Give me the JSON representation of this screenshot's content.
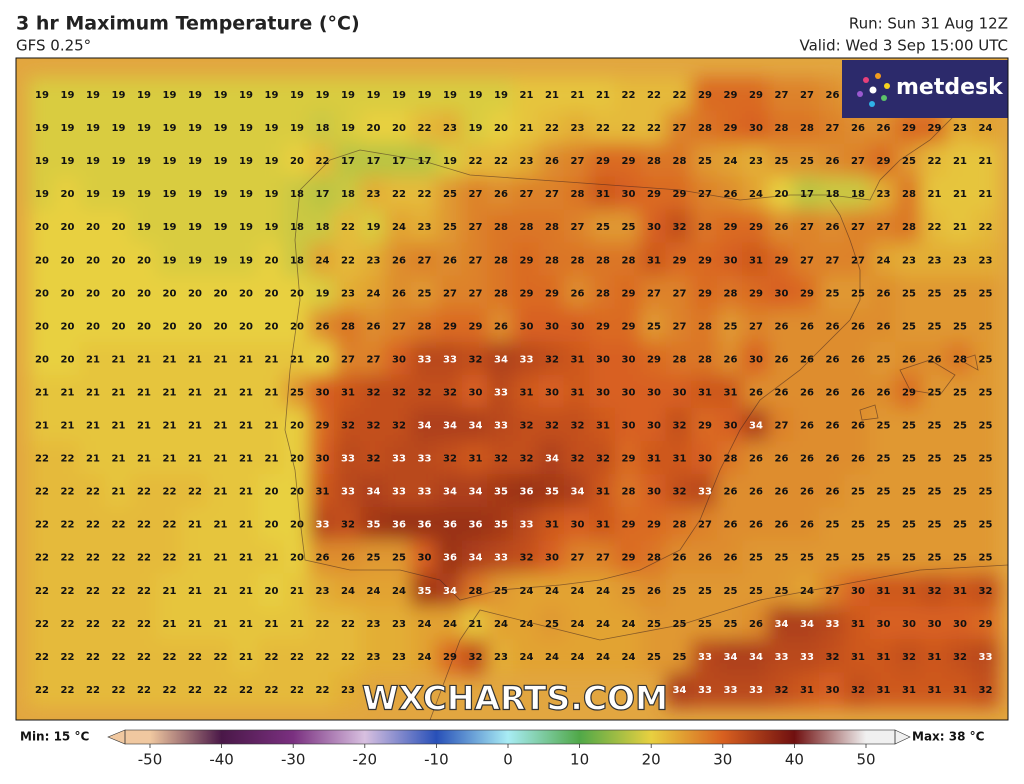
{
  "header": {
    "title": "3 hr Maximum Temperature (°C)",
    "model": "GFS 0.25°",
    "run": "Run: Sun 31 Aug 12Z",
    "valid": "Valid: Wed 3 Sep 15:00 UTC"
  },
  "logo": "metdesk",
  "watermark": "WXCHARTS.COM",
  "grid": {
    "rows": [
      [
        19,
        19,
        19,
        19,
        19,
        19,
        19,
        19,
        19,
        19,
        19,
        19,
        19,
        19,
        19,
        19,
        19,
        19,
        19,
        21,
        21,
        21,
        21,
        22,
        22,
        22,
        29,
        29,
        29,
        27,
        27,
        26,
        null,
        null,
        null,
        null,
        null,
        null
      ],
      [
        19,
        19,
        19,
        19,
        19,
        19,
        19,
        19,
        19,
        19,
        19,
        18,
        19,
        20,
        20,
        22,
        23,
        19,
        20,
        21,
        22,
        23,
        22,
        22,
        22,
        27,
        28,
        29,
        30,
        28,
        28,
        27,
        26,
        26,
        29,
        29,
        23,
        24
      ],
      [
        19,
        19,
        19,
        19,
        19,
        19,
        19,
        19,
        19,
        19,
        20,
        22,
        17,
        17,
        17,
        17,
        19,
        22,
        22,
        23,
        26,
        27,
        29,
        29,
        28,
        28,
        25,
        24,
        23,
        25,
        25,
        26,
        27,
        29,
        25,
        22,
        21,
        21
      ],
      [
        19,
        20,
        19,
        19,
        19,
        19,
        19,
        19,
        19,
        19,
        18,
        17,
        18,
        23,
        22,
        22,
        25,
        27,
        26,
        27,
        27,
        28,
        31,
        30,
        29,
        29,
        27,
        26,
        24,
        20,
        17,
        18,
        18,
        23,
        28,
        21,
        21,
        21
      ],
      [
        20,
        20,
        20,
        20,
        19,
        19,
        19,
        19,
        19,
        19,
        18,
        18,
        22,
        19,
        24,
        23,
        25,
        27,
        28,
        28,
        28,
        27,
        25,
        25,
        30,
        32,
        28,
        29,
        29,
        26,
        27,
        26,
        27,
        27,
        28,
        22,
        21,
        22
      ],
      [
        20,
        20,
        20,
        20,
        20,
        19,
        19,
        19,
        19,
        20,
        18,
        24,
        22,
        23,
        26,
        27,
        26,
        27,
        28,
        29,
        28,
        28,
        28,
        28,
        31,
        29,
        29,
        30,
        31,
        29,
        27,
        27,
        27,
        24,
        23,
        23,
        23,
        23
      ],
      [
        20,
        20,
        20,
        20,
        20,
        20,
        20,
        20,
        20,
        20,
        20,
        19,
        23,
        24,
        26,
        25,
        27,
        27,
        28,
        29,
        29,
        26,
        28,
        29,
        27,
        27,
        29,
        28,
        29,
        30,
        29,
        25,
        25,
        26,
        25,
        25,
        25,
        25
      ],
      [
        20,
        20,
        20,
        20,
        20,
        20,
        20,
        20,
        20,
        20,
        20,
        26,
        28,
        26,
        27,
        28,
        29,
        29,
        26,
        30,
        30,
        30,
        29,
        29,
        25,
        27,
        28,
        25,
        27,
        26,
        26,
        26,
        26,
        26,
        25,
        25,
        25,
        25
      ],
      [
        20,
        20,
        21,
        21,
        21,
        21,
        21,
        21,
        21,
        21,
        21,
        20,
        27,
        27,
        30,
        33,
        33,
        32,
        34,
        33,
        32,
        31,
        30,
        30,
        29,
        28,
        28,
        26,
        30,
        26,
        26,
        26,
        26,
        25,
        26,
        26,
        28,
        25
      ],
      [
        21,
        21,
        21,
        21,
        21,
        21,
        21,
        21,
        21,
        21,
        25,
        30,
        31,
        32,
        32,
        32,
        32,
        30,
        33,
        31,
        30,
        31,
        30,
        30,
        30,
        30,
        31,
        31,
        26,
        26,
        26,
        26,
        26,
        26,
        29,
        25,
        25,
        25
      ],
      [
        21,
        21,
        21,
        21,
        21,
        21,
        21,
        21,
        21,
        21,
        20,
        29,
        32,
        32,
        32,
        34,
        34,
        34,
        33,
        32,
        32,
        32,
        31,
        30,
        30,
        32,
        29,
        30,
        34,
        27,
        26,
        26,
        26,
        25,
        25,
        25,
        25,
        25
      ],
      [
        22,
        22,
        21,
        21,
        21,
        21,
        21,
        21,
        21,
        21,
        20,
        30,
        33,
        32,
        33,
        33,
        32,
        31,
        32,
        32,
        34,
        32,
        32,
        29,
        31,
        31,
        30,
        28,
        26,
        26,
        26,
        26,
        26,
        25,
        25,
        25,
        25,
        25
      ],
      [
        22,
        22,
        22,
        21,
        22,
        22,
        22,
        21,
        21,
        20,
        20,
        31,
        33,
        34,
        33,
        33,
        34,
        34,
        35,
        36,
        35,
        34,
        31,
        28,
        30,
        32,
        33,
        26,
        26,
        26,
        26,
        26,
        25,
        25,
        25,
        25,
        25,
        25
      ],
      [
        22,
        22,
        22,
        22,
        22,
        22,
        21,
        21,
        21,
        20,
        20,
        33,
        32,
        35,
        36,
        36,
        36,
        36,
        35,
        33,
        31,
        30,
        31,
        29,
        29,
        28,
        27,
        26,
        26,
        26,
        26,
        25,
        25,
        25,
        25,
        25,
        25,
        25
      ],
      [
        22,
        22,
        22,
        22,
        22,
        22,
        21,
        21,
        21,
        21,
        20,
        26,
        26,
        25,
        25,
        30,
        36,
        34,
        33,
        32,
        30,
        27,
        27,
        29,
        28,
        26,
        26,
        26,
        25,
        25,
        25,
        25,
        25,
        25,
        25,
        25,
        25,
        25
      ],
      [
        22,
        22,
        22,
        22,
        22,
        21,
        21,
        21,
        21,
        20,
        21,
        23,
        24,
        24,
        24,
        35,
        34,
        28,
        25,
        24,
        24,
        24,
        24,
        25,
        26,
        25,
        25,
        25,
        25,
        25,
        24,
        27,
        30,
        31,
        31,
        32,
        31,
        32
      ],
      [
        22,
        22,
        22,
        22,
        22,
        21,
        21,
        21,
        21,
        21,
        21,
        22,
        22,
        23,
        23,
        24,
        24,
        21,
        24,
        24,
        25,
        24,
        24,
        24,
        25,
        25,
        25,
        25,
        26,
        34,
        34,
        33,
        31,
        30,
        30,
        30,
        30,
        29
      ],
      [
        22,
        22,
        22,
        22,
        22,
        22,
        22,
        22,
        21,
        22,
        22,
        22,
        22,
        23,
        23,
        24,
        29,
        32,
        23,
        24,
        24,
        24,
        24,
        24,
        25,
        25,
        33,
        34,
        34,
        33,
        33,
        32,
        31,
        31,
        32,
        31,
        32,
        33
      ],
      [
        22,
        22,
        22,
        22,
        22,
        22,
        22,
        22,
        22,
        22,
        22,
        22,
        23,
        null,
        null,
        null,
        null,
        null,
        null,
        null,
        null,
        null,
        null,
        null,
        null,
        34,
        33,
        33,
        33,
        32,
        31,
        30,
        32,
        31,
        31,
        31,
        31,
        32
      ]
    ]
  },
  "colorbar": {
    "ticks": [
      -50,
      -40,
      -30,
      -20,
      -10,
      0,
      10,
      20,
      30,
      40,
      50
    ],
    "min_label": "Min: 15 °C",
    "max_label": "Max: 38 °C"
  }
}
